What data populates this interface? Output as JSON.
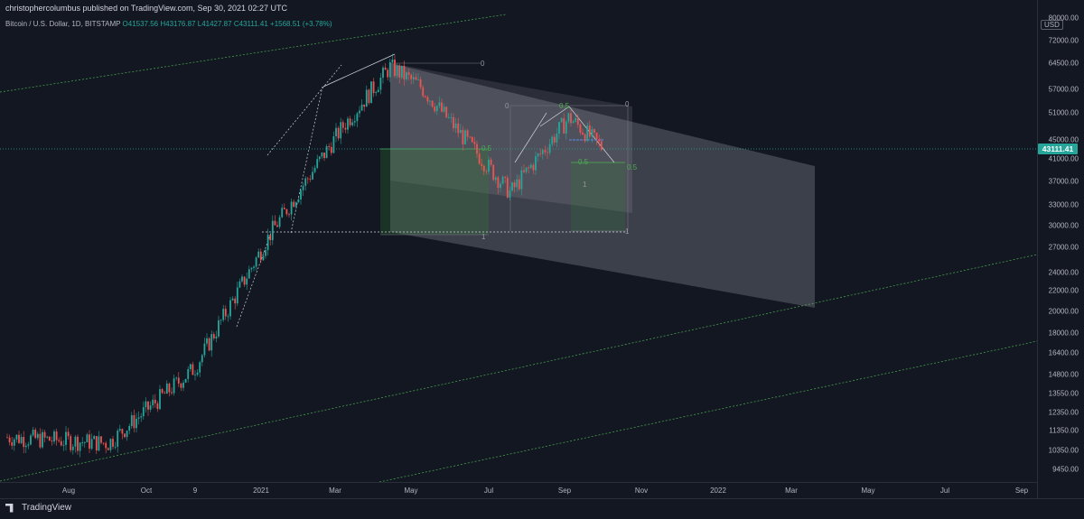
{
  "header": {
    "publisher": "christophercolumbus published on TradingView.com, Sep 30, 2021 02:27 UTC"
  },
  "ohlc": {
    "symbol": "Bitcoin / U.S. Dollar, 1D, BITSTAMP",
    "open": "O41537.56",
    "high": "H43176.87",
    "low": "L41427.87",
    "close": "C43111.41",
    "change": "+1568.51 (+3.78%)"
  },
  "price_axis": {
    "unit": "USD",
    "ticks": [
      "80000.00",
      "72000.00",
      "64500.00",
      "57000.00",
      "51000.00",
      "45000.00",
      "41000.00",
      "37000.00",
      "33000.00",
      "30000.00",
      "27000.00",
      "24000.00",
      "22000.00",
      "20000.00",
      "18000.00",
      "16400.00",
      "14800.00",
      "13550.00",
      "12350.00",
      "11350.00",
      "10350.00",
      "9450.00"
    ],
    "current_price": "43111.41"
  },
  "time_axis": {
    "ticks": [
      "Aug",
      "Oct",
      "9",
      "2021",
      "Mar",
      "May",
      "Jul",
      "Sep",
      "Nov",
      "2022",
      "Mar",
      "May",
      "Jul",
      "Sep"
    ]
  },
  "fib_labels": {
    "big_zero": "0",
    "big_half": "0.5",
    "big_one": "1",
    "mid_zero": "0",
    "mid_half": "0.5",
    "mid_one": "1",
    "small_half_top": "0.5",
    "small_zero": "0",
    "small_half": "0.5",
    "small_one": "1",
    "right_half": "0.5",
    "right_one": "1"
  },
  "footer": {
    "brand": "TradingView"
  },
  "colors": {
    "background": "#131722",
    "up": "#26a69a",
    "down": "#ef5350",
    "fib_green": "#4caf50",
    "channel": "#9598a1"
  },
  "chart_data": {
    "type": "candlestick",
    "title": "Bitcoin / U.S. Dollar, 1D, BITSTAMP",
    "ylabel": "USD",
    "y_scale": "log",
    "ylim": [
      9000,
      80000
    ],
    "x": [
      "Aug 2020",
      "Oct 2020",
      "Nov 9 2020",
      "Jan 2021",
      "Mar 2021",
      "Apr 2021",
      "May 2021",
      "Jul 2021",
      "Sep 2021",
      "Sep 30 2021"
    ],
    "series": [
      {
        "values": [
          11000,
          10700,
          15300,
          29000,
          48000,
          63500,
          58000,
          35000,
          50000,
          43111.41
        ]
      }
    ],
    "horizontal_level": 43111.41
  }
}
